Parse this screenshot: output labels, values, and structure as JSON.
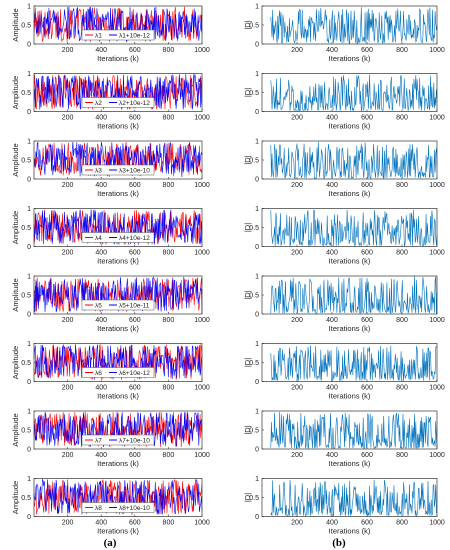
{
  "chart_data": {
    "type": "line",
    "panel_labels": [
      "(a)",
      "(b)"
    ],
    "left_panels": {
      "ylabel": "Amplitude",
      "xlabel": "Iterations (k)",
      "xticks": [
        "200",
        "400",
        "600",
        "800",
        "1000"
      ],
      "yticks": [
        "0",
        "0.5",
        "1"
      ],
      "xlim": [
        0,
        1000
      ],
      "ylim": [
        0,
        1
      ],
      "colors": {
        "series1": "#ff0000",
        "series2": "#0000ff"
      },
      "legend_placement": "bottom-center",
      "plots": [
        {
          "legend": [
            "λ1",
            "λ1+10e-12"
          ]
        },
        {
          "legend": [
            "λ2",
            "λ2+10e-12"
          ]
        },
        {
          "legend": [
            "λ3",
            "λ3+10e-10"
          ]
        },
        {
          "legend": [
            "λ4",
            "λ4+10e-12"
          ]
        },
        {
          "legend": [
            "λ5",
            "λ5+10e-11"
          ]
        },
        {
          "legend": [
            "λ6",
            "λ6+10e-12"
          ]
        },
        {
          "legend": [
            "λ7",
            "λ7+10e-10"
          ]
        },
        {
          "legend": [
            "λ8",
            "λ8+10e-10"
          ]
        }
      ]
    },
    "right_panels": {
      "ylabel": "|D|",
      "xlabel": "Iterations (k)",
      "xticks": [
        "200",
        "400",
        "600",
        "800",
        "1000"
      ],
      "yticks": [
        "0",
        "0.5",
        "1"
      ],
      "xlim": [
        0,
        1000
      ],
      "ylim": [
        0,
        1
      ],
      "color": "#0072bd",
      "count": 8
    }
  }
}
